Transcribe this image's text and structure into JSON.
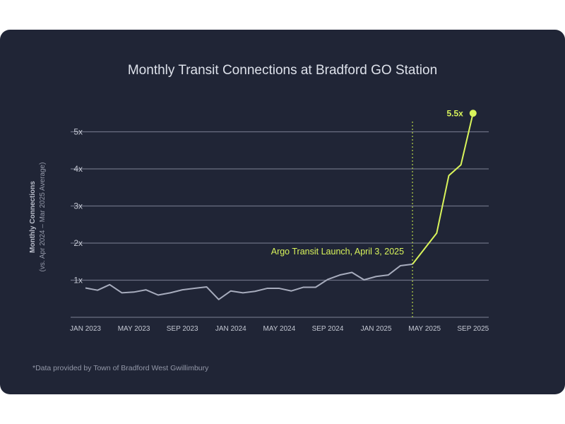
{
  "chart_data": {
    "type": "line",
    "title": "Monthly Transit Connections at Bradford GO Station",
    "ylabel": "Monthly Connections",
    "ylabel_sub": "(vs. Apr 2024 – Mar 2025 Average)",
    "xlabel": "",
    "ylim": [
      0,
      5.5
    ],
    "y_ticks": [
      1,
      2,
      3,
      4,
      5
    ],
    "y_tick_labels": [
      "1x",
      "2x",
      "3x",
      "4x",
      "5x"
    ],
    "x_tick_labels": [
      "JAN 2023",
      "MAY 2023",
      "SEP 2023",
      "JAN 2024",
      "MAY 2024",
      "SEP 2024",
      "JAN 2025",
      "MAY 2025",
      "SEP 2025"
    ],
    "grid": true,
    "x": [
      "2023-01",
      "2023-02",
      "2023-03",
      "2023-04",
      "2023-05",
      "2023-06",
      "2023-07",
      "2023-08",
      "2023-09",
      "2023-10",
      "2023-11",
      "2023-12",
      "2024-01",
      "2024-02",
      "2024-03",
      "2024-04",
      "2024-05",
      "2024-06",
      "2024-07",
      "2024-08",
      "2024-09",
      "2024-10",
      "2024-11",
      "2024-12",
      "2025-01",
      "2025-02",
      "2025-03",
      "2025-04",
      "2025-05",
      "2025-06",
      "2025-07",
      "2025-08",
      "2025-09"
    ],
    "series": [
      {
        "values": [
          0.79,
          0.73,
          0.88,
          0.66,
          0.68,
          0.74,
          0.6,
          0.66,
          0.74,
          0.78,
          0.82,
          0.48,
          0.71,
          0.66,
          0.7,
          0.78,
          0.78,
          0.71,
          0.81,
          0.81,
          1.02,
          1.14,
          1.21,
          1.01,
          1.1,
          1.14,
          1.39,
          1.43,
          1.85,
          2.27,
          3.82,
          4.11,
          5.5
        ],
        "color_before": "#a7acbd",
        "color_after": "#d9f45b"
      }
    ],
    "annotation": {
      "label": "Argo Transit Launch, April 3, 2025",
      "date": "2025-04"
    },
    "end_label": "5.5x",
    "footnote": "*Data provided by Town of Bradford West Gwillimbury"
  },
  "colors": {
    "background": "#202536",
    "accent": "#d9f45b",
    "grid": "#6b7083",
    "text": "#dde1ea"
  }
}
